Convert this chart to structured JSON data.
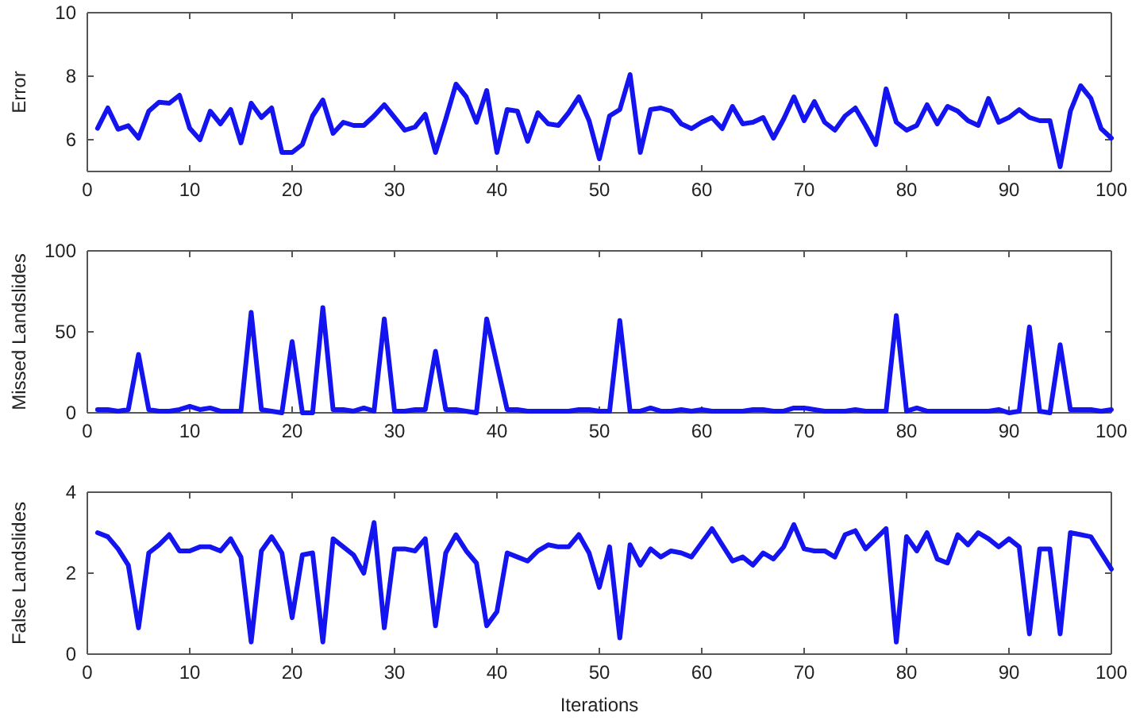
{
  "chart_data": [
    {
      "type": "line",
      "ylabel": "Error",
      "x": [
        1,
        2,
        3,
        4,
        5,
        6,
        7,
        8,
        9,
        10,
        11,
        12,
        13,
        14,
        15,
        16,
        17,
        18,
        19,
        20,
        21,
        22,
        23,
        24,
        25,
        26,
        27,
        28,
        29,
        30,
        31,
        32,
        33,
        34,
        35,
        36,
        37,
        38,
        39,
        40,
        41,
        42,
        43,
        44,
        45,
        46,
        47,
        48,
        49,
        50,
        51,
        52,
        53,
        54,
        55,
        56,
        57,
        58,
        59,
        60,
        61,
        62,
        63,
        64,
        65,
        66,
        67,
        68,
        69,
        70,
        71,
        72,
        73,
        74,
        75,
        76,
        77,
        78,
        79,
        80,
        81,
        82,
        83,
        84,
        85,
        86,
        87,
        88,
        89,
        90,
        91,
        92,
        93,
        94,
        95,
        96,
        97,
        98,
        99,
        100
      ],
      "series": [
        {
          "color": "#1414f0",
          "values": [
            6.36,
            7.0,
            6.33,
            6.44,
            6.05,
            6.9,
            7.18,
            7.15,
            7.4,
            6.36,
            6.0,
            6.9,
            6.5,
            6.95,
            5.9,
            7.15,
            6.7,
            7.0,
            5.6,
            5.6,
            5.85,
            6.75,
            7.25,
            6.2,
            6.55,
            6.45,
            6.45,
            6.75,
            7.1,
            6.7,
            6.3,
            6.4,
            6.8,
            5.6,
            6.65,
            7.75,
            7.35,
            6.55,
            7.55,
            5.6,
            6.95,
            6.9,
            5.95,
            6.85,
            6.5,
            6.45,
            6.85,
            7.35,
            6.6,
            5.4,
            6.75,
            6.95,
            8.05,
            5.6,
            6.95,
            7.0,
            6.9,
            6.5,
            6.35,
            6.55,
            6.7,
            6.35,
            7.05,
            6.5,
            6.55,
            6.7,
            6.05,
            6.65,
            7.35,
            6.6,
            7.2,
            6.55,
            6.3,
            6.75,
            7.0,
            6.45,
            5.85,
            7.6,
            6.55,
            6.3,
            6.45,
            7.1,
            6.5,
            7.05,
            6.9,
            6.6,
            6.45,
            7.3,
            6.55,
            6.7,
            6.95,
            6.7,
            6.6,
            6.6,
            5.15,
            6.9,
            7.7,
            7.3,
            6.35,
            6.05
          ]
        }
      ],
      "xlim": [
        0,
        100
      ],
      "xticks": [
        0,
        10,
        20,
        30,
        40,
        50,
        60,
        70,
        80,
        90,
        100
      ],
      "ylim": [
        5,
        10
      ],
      "yticks": [
        6,
        8,
        10
      ],
      "grid": false,
      "marker": "none",
      "line_style": "solid"
    },
    {
      "type": "line",
      "ylabel": "Missed Landslides",
      "x": [
        1,
        2,
        3,
        4,
        5,
        6,
        7,
        8,
        9,
        10,
        11,
        12,
        13,
        14,
        15,
        16,
        17,
        18,
        19,
        20,
        21,
        22,
        23,
        24,
        25,
        26,
        27,
        28,
        29,
        30,
        31,
        32,
        33,
        34,
        35,
        36,
        37,
        38,
        39,
        40,
        41,
        42,
        43,
        44,
        45,
        46,
        47,
        48,
        49,
        50,
        51,
        52,
        53,
        54,
        55,
        56,
        57,
        58,
        59,
        60,
        61,
        62,
        63,
        64,
        65,
        66,
        67,
        68,
        69,
        70,
        71,
        72,
        73,
        74,
        75,
        76,
        77,
        78,
        79,
        80,
        81,
        82,
        83,
        84,
        85,
        86,
        87,
        88,
        89,
        90,
        91,
        92,
        93,
        94,
        95,
        96,
        97,
        98,
        99,
        100
      ],
      "series": [
        {
          "color": "#1414f0",
          "values": [
            2,
            2,
            1,
            2,
            36,
            2,
            1,
            1,
            2,
            4,
            2,
            3,
            1,
            1,
            1,
            62,
            2,
            1,
            0,
            44,
            0,
            0,
            65,
            2,
            2,
            1,
            3,
            1,
            58,
            1,
            1,
            2,
            2,
            38,
            2,
            2,
            1,
            0,
            58,
            30,
            2,
            2,
            1,
            1,
            1,
            1,
            1,
            2,
            2,
            1,
            1,
            57,
            1,
            1,
            3,
            1,
            1,
            2,
            1,
            2,
            1,
            1,
            1,
            1,
            2,
            2,
            1,
            1,
            3,
            3,
            2,
            1,
            1,
            1,
            2,
            1,
            1,
            1,
            60,
            1,
            3,
            1,
            1,
            1,
            1,
            1,
            1,
            1,
            2,
            0,
            1,
            53,
            1,
            0,
            42,
            2,
            2,
            2,
            1,
            2
          ]
        }
      ],
      "xlim": [
        0,
        100
      ],
      "xticks": [
        0,
        10,
        20,
        30,
        40,
        50,
        60,
        70,
        80,
        90,
        100
      ],
      "ylim": [
        0,
        100
      ],
      "yticks": [
        0,
        50,
        100
      ],
      "grid": false,
      "marker": "none",
      "line_style": "solid"
    },
    {
      "type": "line",
      "ylabel": "False Landslides",
      "xlabel": "Iterations",
      "x": [
        1,
        2,
        3,
        4,
        5,
        6,
        7,
        8,
        9,
        10,
        11,
        12,
        13,
        14,
        15,
        16,
        17,
        18,
        19,
        20,
        21,
        22,
        23,
        24,
        25,
        26,
        27,
        28,
        29,
        30,
        31,
        32,
        33,
        34,
        35,
        36,
        37,
        38,
        39,
        40,
        41,
        42,
        43,
        44,
        45,
        46,
        47,
        48,
        49,
        50,
        51,
        52,
        53,
        54,
        55,
        56,
        57,
        58,
        59,
        60,
        61,
        62,
        63,
        64,
        65,
        66,
        67,
        68,
        69,
        70,
        71,
        72,
        73,
        74,
        75,
        76,
        77,
        78,
        79,
        80,
        81,
        82,
        83,
        84,
        85,
        86,
        87,
        88,
        89,
        90,
        91,
        92,
        93,
        94,
        95,
        96,
        97,
        98,
        99,
        100
      ],
      "series": [
        {
          "color": "#1414f0",
          "values": [
            3.0,
            2.9,
            2.6,
            2.2,
            0.65,
            2.5,
            2.7,
            2.95,
            2.55,
            2.55,
            2.65,
            2.65,
            2.55,
            2.85,
            2.4,
            0.3,
            2.55,
            2.9,
            2.5,
            0.9,
            2.45,
            2.5,
            0.3,
            2.85,
            2.65,
            2.45,
            2.0,
            3.25,
            0.65,
            2.6,
            2.6,
            2.55,
            2.85,
            0.7,
            2.5,
            2.95,
            2.55,
            2.25,
            0.7,
            1.05,
            2.5,
            2.4,
            2.3,
            2.55,
            2.7,
            2.65,
            2.65,
            2.95,
            2.5,
            1.65,
            2.65,
            0.4,
            2.7,
            2.2,
            2.6,
            2.4,
            2.55,
            2.5,
            2.4,
            2.75,
            3.1,
            2.7,
            2.3,
            2.4,
            2.2,
            2.5,
            2.35,
            2.65,
            3.2,
            2.6,
            2.55,
            2.55,
            2.4,
            2.95,
            3.05,
            2.6,
            2.85,
            3.1,
            0.3,
            2.9,
            2.55,
            3.0,
            2.35,
            2.25,
            2.95,
            2.7,
            3.0,
            2.85,
            2.65,
            2.85,
            2.65,
            0.5,
            2.6,
            2.6,
            0.5,
            3.0,
            2.95,
            2.9,
            2.5,
            2.1
          ]
        }
      ],
      "xlim": [
        0,
        100
      ],
      "xticks": [
        0,
        10,
        20,
        30,
        40,
        50,
        60,
        70,
        80,
        90,
        100
      ],
      "ylim": [
        0,
        4
      ],
      "yticks": [
        0,
        2,
        4
      ],
      "grid": false,
      "marker": "none",
      "line_style": "solid"
    }
  ]
}
